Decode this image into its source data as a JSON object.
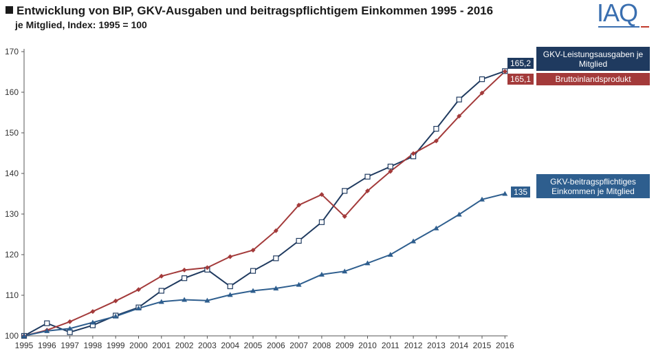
{
  "header": {
    "title": "Entwicklung von BIP, GKV-Ausgaben und beitragspflichtigem Einkommen 1995 - 2016",
    "subtitle": "je Mitglied, Index: 1995 = 100",
    "logo_text": "IAQ"
  },
  "chart_data": {
    "type": "line",
    "title": "Entwicklung von BIP, GKV-Ausgaben und beitragspflichtigem Einkommen 1995 - 2016",
    "subtitle": "je Mitglied, Index: 1995 = 100",
    "xlabel": "",
    "ylabel": "",
    "ylim": [
      100,
      170
    ],
    "yticks": [
      100,
      110,
      120,
      130,
      140,
      150,
      160,
      170
    ],
    "categories": [
      "1995",
      "1996",
      "1997",
      "1998",
      "1999",
      "2000",
      "2001",
      "2002",
      "2003",
      "2004",
      "2005",
      "2006",
      "2007",
      "2008",
      "2009",
      "2010",
      "2011",
      "2012",
      "2013",
      "2014",
      "2015",
      "2016"
    ],
    "series": [
      {
        "name": "GKV-Leistungsausgaben je Mitglied",
        "color": "#1f3a5f",
        "marker": "square-open",
        "values": [
          100,
          103.1,
          100.9,
          102.6,
          105.0,
          107.0,
          111.1,
          114.2,
          116.3,
          112.2,
          116.0,
          119.1,
          123.4,
          128.0,
          135.7,
          139.2,
          141.7,
          144.2,
          151.0,
          158.2,
          163.2,
          165.2
        ],
        "end_label": "165,2"
      },
      {
        "name": "Bruttoinlandsprodukt",
        "color": "#a33a3a",
        "marker": "diamond",
        "values": [
          100,
          101.4,
          103.5,
          106.0,
          108.6,
          111.4,
          114.7,
          116.2,
          116.8,
          119.5,
          121.1,
          125.9,
          132.2,
          134.8,
          129.4,
          135.7,
          140.5,
          144.9,
          148.0,
          154.1,
          159.8,
          165.1
        ],
        "end_label": "165,1"
      },
      {
        "name": "GKV-beitragspflichtiges Einkommen je Mitglied",
        "color": "#2e5e8e",
        "marker": "triangle",
        "values": [
          100,
          101.2,
          101.8,
          103.3,
          104.8,
          106.8,
          108.4,
          108.9,
          108.7,
          110.1,
          111.1,
          111.7,
          112.6,
          115.1,
          115.9,
          117.9,
          120.0,
          123.3,
          126.5,
          129.9,
          133.6,
          135.0
        ],
        "end_label": "135"
      }
    ],
    "grid": false,
    "legend": "right, at line ends"
  }
}
